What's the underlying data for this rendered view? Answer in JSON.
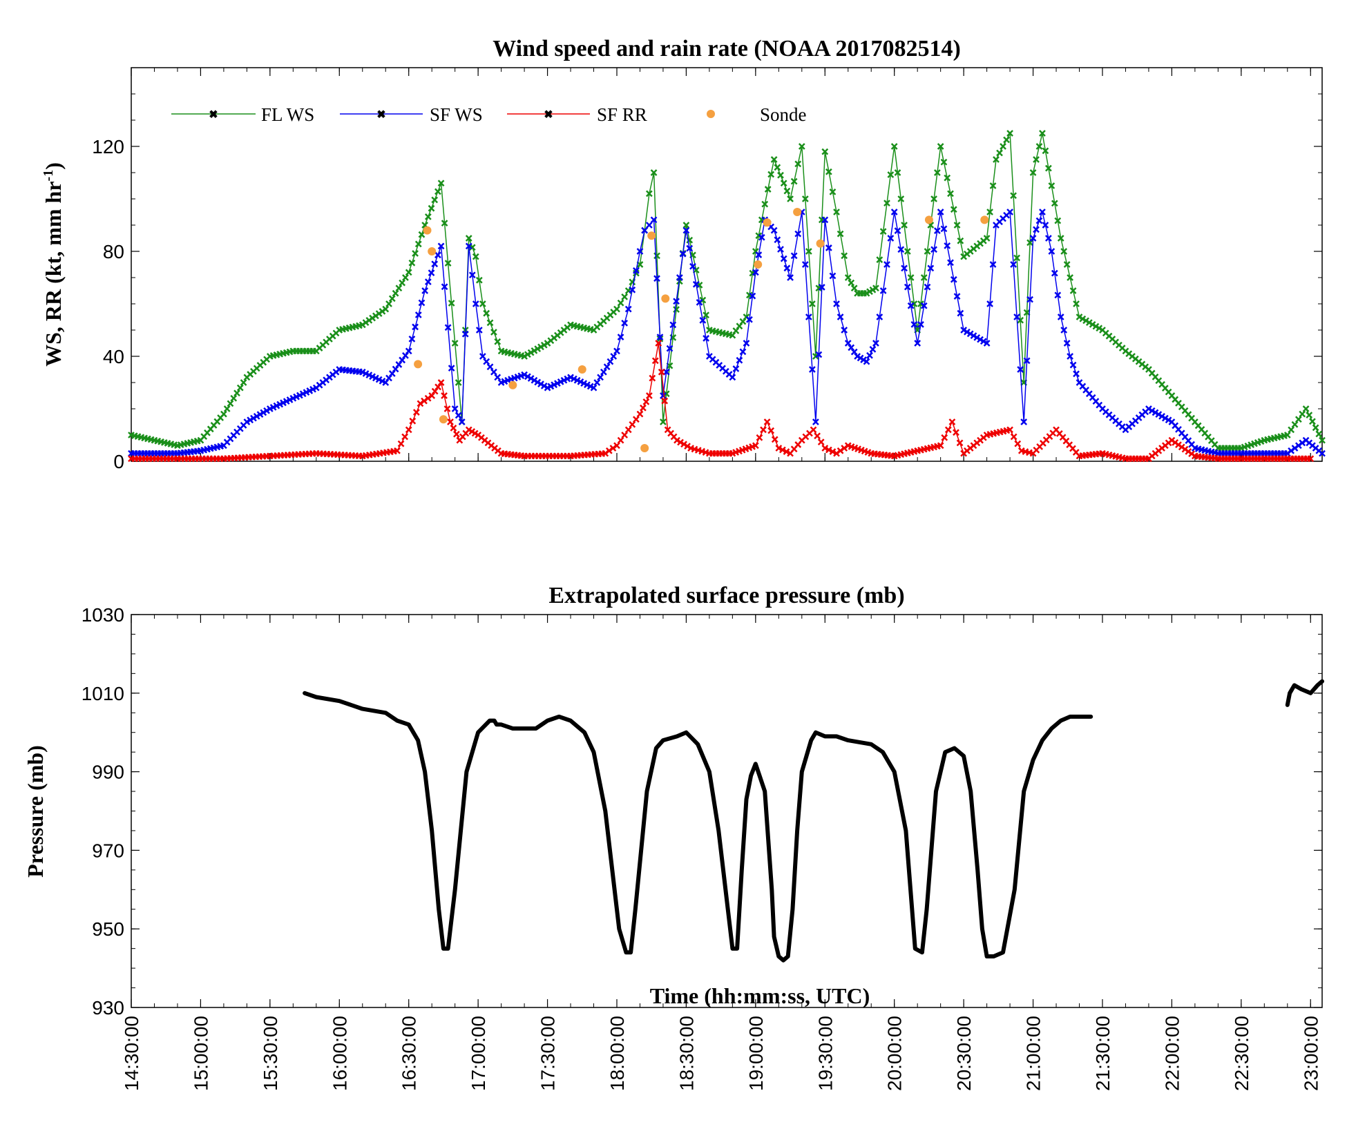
{
  "chart_data": [
    {
      "type": "line",
      "title": "Wind speed and rain rate (NOAA 2017082514)",
      "ylabel_main": "WS, RR (kt, mm hr",
      "ylabel_sup": "-1",
      "ylabel_end": ")",
      "xlim": [
        870,
        1385
      ],
      "ylim": [
        0,
        150
      ],
      "y_ticks": [
        0,
        40,
        80,
        120
      ],
      "y_tick_labels": [
        "0",
        "40",
        "80",
        "120"
      ],
      "legend": {
        "placement": "top-left",
        "entries": [
          "FL WS",
          "SF WS",
          "SF RR",
          "Sonde"
        ]
      },
      "colors": {
        "FL WS": "#1a8f1a",
        "SF WS": "#0000ee",
        "SF RR": "#ee0000",
        "Sonde": "#f5a040"
      },
      "series": [
        {
          "name": "FL WS",
          "x": [
            870,
            880,
            890,
            900,
            910,
            920,
            930,
            940,
            950,
            960,
            970,
            980,
            990,
            997,
            1004,
            1010,
            1013,
            1016,
            1019,
            1022,
            1030,
            1040,
            1050,
            1060,
            1070,
            1080,
            1085,
            1090,
            1092,
            1094,
            1096,
            1100,
            1110,
            1120,
            1130,
            1136,
            1140,
            1144,
            1148,
            1155,
            1160,
            1166,
            1170,
            1175,
            1180,
            1184,
            1188,
            1192,
            1200,
            1210,
            1220,
            1230,
            1240,
            1244,
            1250,
            1256,
            1260,
            1264,
            1268,
            1272,
            1276,
            1280,
            1290,
            1300,
            1310,
            1320,
            1330,
            1340,
            1350,
            1360,
            1370,
            1378,
            1385
          ],
          "values": [
            10,
            8,
            6,
            8,
            18,
            32,
            40,
            42,
            42,
            50,
            52,
            58,
            72,
            90,
            106,
            45,
            15,
            85,
            78,
            60,
            42,
            40,
            45,
            52,
            50,
            58,
            65,
            75,
            88,
            102,
            110,
            15,
            90,
            50,
            48,
            55,
            80,
            98,
            115,
            100,
            120,
            40,
            118,
            95,
            70,
            64,
            64,
            66,
            120,
            50,
            120,
            78,
            85,
            115,
            125,
            30,
            110,
            125,
            105,
            85,
            70,
            55,
            50,
            42,
            35,
            25,
            15,
            5,
            5,
            8,
            10,
            20,
            8
          ]
        },
        {
          "name": "SF WS",
          "x": [
            870,
            880,
            890,
            900,
            910,
            920,
            930,
            940,
            950,
            960,
            970,
            980,
            990,
            997,
            1004,
            1010,
            1013,
            1016,
            1019,
            1022,
            1030,
            1040,
            1050,
            1060,
            1070,
            1080,
            1085,
            1090,
            1092,
            1094,
            1096,
            1100,
            1110,
            1120,
            1130,
            1136,
            1140,
            1144,
            1148,
            1155,
            1160,
            1166,
            1170,
            1175,
            1180,
            1184,
            1188,
            1192,
            1200,
            1210,
            1220,
            1230,
            1240,
            1244,
            1250,
            1256,
            1260,
            1264,
            1268,
            1272,
            1276,
            1280,
            1290,
            1300,
            1310,
            1320,
            1330,
            1340,
            1350,
            1360,
            1370,
            1378,
            1385
          ],
          "values": [
            3,
            3,
            3,
            4,
            6,
            15,
            20,
            24,
            28,
            35,
            34,
            30,
            42,
            65,
            82,
            20,
            15,
            82,
            60,
            40,
            30,
            33,
            28,
            32,
            28,
            42,
            58,
            80,
            88,
            90,
            92,
            25,
            88,
            40,
            32,
            45,
            72,
            92,
            88,
            70,
            95,
            15,
            92,
            60,
            45,
            40,
            38,
            45,
            95,
            45,
            95,
            50,
            45,
            90,
            95,
            15,
            85,
            95,
            80,
            55,
            40,
            30,
            20,
            12,
            20,
            15,
            5,
            3,
            3,
            3,
            3,
            8,
            3
          ]
        },
        {
          "name": "SF RR",
          "x": [
            870,
            890,
            910,
            930,
            950,
            970,
            985,
            990,
            995,
            1000,
            1004,
            1008,
            1012,
            1016,
            1020,
            1030,
            1040,
            1060,
            1075,
            1080,
            1085,
            1090,
            1094,
            1098,
            1102,
            1106,
            1112,
            1120,
            1130,
            1140,
            1145,
            1150,
            1155,
            1160,
            1165,
            1170,
            1175,
            1180,
            1190,
            1200,
            1210,
            1220,
            1225,
            1230,
            1240,
            1250,
            1255,
            1260,
            1270,
            1280,
            1290,
            1300,
            1310,
            1320,
            1330,
            1340,
            1350,
            1360,
            1370,
            1380
          ],
          "values": [
            1,
            1,
            1,
            2,
            3,
            2,
            4,
            12,
            22,
            25,
            30,
            15,
            8,
            12,
            10,
            3,
            2,
            2,
            3,
            6,
            12,
            18,
            25,
            45,
            12,
            8,
            5,
            3,
            3,
            6,
            15,
            5,
            3,
            8,
            12,
            5,
            3,
            6,
            3,
            2,
            4,
            6,
            15,
            3,
            10,
            12,
            4,
            3,
            12,
            2,
            3,
            1,
            1,
            8,
            2,
            1,
            1,
            1,
            1,
            1
          ]
        },
        {
          "name": "Sonde",
          "x": [
            994,
            998,
            1000,
            1005,
            1035,
            1065,
            1092,
            1095,
            1101,
            1141,
            1145,
            1158,
            1168,
            1215,
            1239
          ],
          "values": [
            37,
            88,
            80,
            16,
            29,
            35,
            5,
            86,
            62,
            75,
            91,
            95,
            83,
            92,
            92
          ]
        }
      ]
    },
    {
      "type": "line",
      "title": "Extrapolated surface pressure (mb)",
      "ylabel": "Pressure (mb)",
      "xlabel": "Time (hh:mm:ss, UTC)",
      "xlim": [
        870,
        1385
      ],
      "ylim": [
        930,
        1030
      ],
      "y_ticks": [
        930,
        950,
        970,
        990,
        1010,
        1030
      ],
      "y_tick_labels": [
        "930",
        "950",
        "970",
        "990",
        "1010",
        "1030"
      ],
      "x_ticks": [
        870,
        900,
        930,
        960,
        990,
        1020,
        1050,
        1080,
        1110,
        1140,
        1170,
        1200,
        1230,
        1260,
        1290,
        1320,
        1350,
        1380
      ],
      "x_tick_labels": [
        "14:30:00",
        "15:00:00",
        "15:30:00",
        "16:00:00",
        "16:30:00",
        "17:00:00",
        "17:30:00",
        "18:00:00",
        "18:30:00",
        "19:00:00",
        "19:30:00",
        "20:00:00",
        "20:30:00",
        "21:00:00",
        "21:30:00",
        "22:00:00",
        "22:30:00",
        "23:00:00"
      ],
      "color": "#000000",
      "series": [
        {
          "name": "",
          "x": [
            945,
            950,
            960,
            970,
            980,
            985,
            990,
            994,
            997,
            1000,
            1003,
            1005,
            1007,
            1010,
            1015,
            1020,
            1025,
            1027,
            1028,
            1030,
            1035,
            1040,
            1045,
            1050,
            1055,
            1060,
            1066,
            1070,
            1075,
            1078,
            1081,
            1084,
            1086,
            1088,
            1093,
            1097,
            1100,
            1106,
            1110,
            1115,
            1120,
            1124,
            1128,
            1130,
            1132,
            1134,
            1136,
            1138,
            1140,
            1144,
            1147,
            1148,
            1150,
            1152,
            1154,
            1156,
            1158,
            1160,
            1164,
            1166,
            1170,
            1175,
            1180,
            1190,
            1195,
            1200,
            1205,
            1207,
            1209,
            1212,
            1214,
            1218,
            1222,
            1226,
            1230,
            1233,
            1236,
            1238,
            1240,
            1243,
            1247,
            1252,
            1256,
            1260,
            1264,
            1268,
            1272,
            1276,
            1280,
            1285
          ],
          "values": [
            1010,
            1009,
            1008,
            1006,
            1005,
            1003,
            1002,
            998,
            990,
            975,
            955,
            945,
            945,
            960,
            990,
            1000,
            1003,
            1003,
            1002,
            1002,
            1001,
            1001,
            1001,
            1003,
            1004,
            1003,
            1000,
            995,
            980,
            965,
            950,
            944,
            944,
            955,
            985,
            996,
            998,
            999,
            1000,
            997,
            990,
            975,
            955,
            945,
            945,
            965,
            983,
            989,
            992,
            985,
            960,
            948,
            943,
            942,
            943,
            955,
            975,
            990,
            998,
            1000,
            999,
            999,
            998,
            997,
            995,
            990,
            975,
            960,
            945,
            944,
            955,
            985,
            995,
            996,
            994,
            985,
            965,
            950,
            943,
            943,
            944,
            960,
            985,
            993,
            998,
            1001,
            1003,
            1004,
            1004,
            1004
          ]
        },
        {
          "name": "",
          "x": [
            1370,
            1371,
            1373,
            1376,
            1380,
            1383,
            1385
          ],
          "values": [
            1007,
            1010,
            1012,
            1011,
            1010,
            1012,
            1013
          ]
        }
      ]
    }
  ]
}
